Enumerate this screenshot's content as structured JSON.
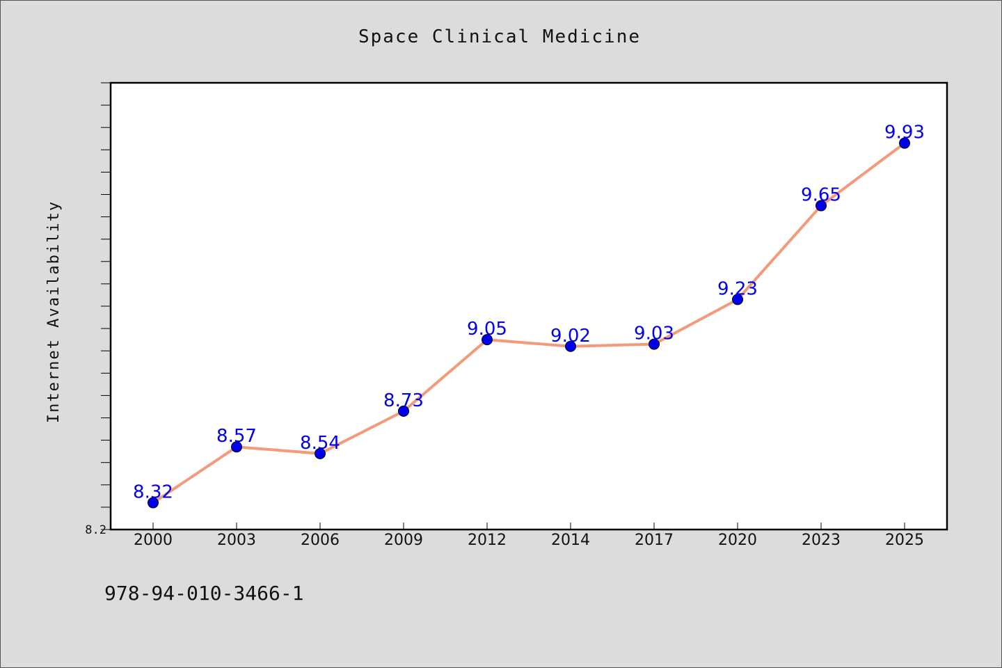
{
  "chart_data": {
    "type": "line",
    "title": "Space Clinical Medicine",
    "xlabel": "",
    "ylabel": "Internet Availability",
    "categories": [
      "2000",
      "2003",
      "2006",
      "2009",
      "2012",
      "2014",
      "2017",
      "2020",
      "2023",
      "2025"
    ],
    "series": [
      {
        "values": [
          8.32,
          8.57,
          8.54,
          8.73,
          9.05,
          9.02,
          9.03,
          9.23,
          9.65,
          9.93
        ]
      }
    ],
    "ylim": [
      8.2,
      10.2
    ],
    "y_tick_labels": [
      "8.2"
    ],
    "grid": false,
    "legend": "none",
    "data_labels": true,
    "colors": {
      "line": "#f4997a",
      "marker": "#0000ee",
      "label": "#0000ee",
      "background": "#dcdcdc",
      "plot_background": "#ffffff"
    }
  },
  "footnote": "978-94-010-3466-1"
}
